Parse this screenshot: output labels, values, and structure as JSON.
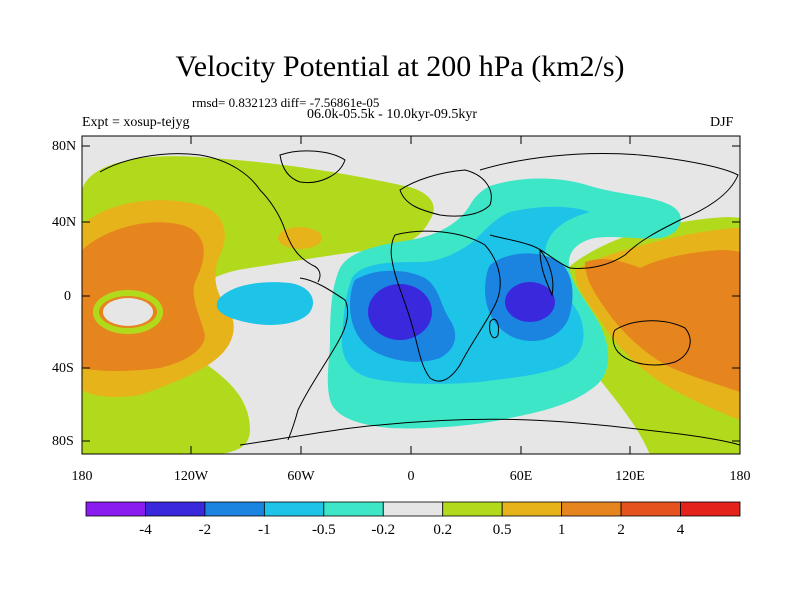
{
  "title": "Velocity Potential at 200 hPa (km2/s)",
  "stats": "rmsd= 0.832123 diff= -7.56861e-05",
  "period": "06.0k-05.5k - 10.0kyr-09.5kyr",
  "expt": "Expt = xosup-tejyg",
  "season": "DJF",
  "y_ticks": [
    "80N",
    "40N",
    "0",
    "40S",
    "80S"
  ],
  "x_ticks": [
    "180",
    "120W",
    "60W",
    "0",
    "60E",
    "120E",
    "180"
  ],
  "colorbar": {
    "labels": [
      "-4",
      "-2",
      "-1",
      "-0.5",
      "-0.2",
      "0.2",
      "0.5",
      "1",
      "2",
      "4"
    ],
    "colors": [
      "#8a1cf0",
      "#3a28dd",
      "#1b84e0",
      "#1ec3e8",
      "#3ee6c8",
      "#e6e6e6",
      "#b2da1c",
      "#e6b41a",
      "#e6841e",
      "#e6521e",
      "#e3221c"
    ]
  },
  "chart_data": {
    "type": "map-contour",
    "title": "Velocity Potential at 200 hPa (km2/s)",
    "levels": [
      -4,
      -2,
      -1,
      -0.5,
      -0.2,
      0.2,
      0.5,
      1,
      2,
      4
    ],
    "lon_range": [
      -180,
      180
    ],
    "lat_range": [
      -90,
      90
    ]
  }
}
